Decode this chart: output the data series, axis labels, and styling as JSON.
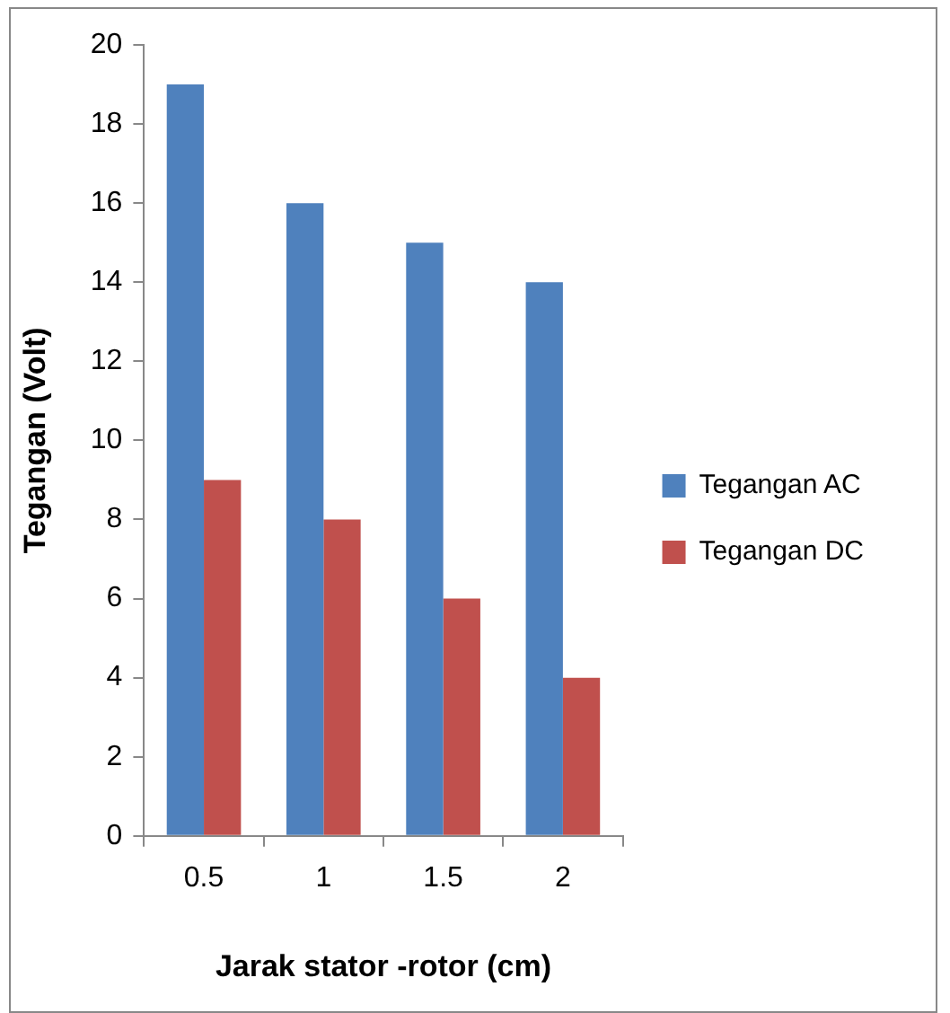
{
  "chart_data": {
    "type": "bar",
    "xlabel": "Jarak stator -rotor (cm)",
    "ylabel": "Tegangan (Volt)",
    "categories": [
      "0.5",
      "1",
      "1.5",
      "2"
    ],
    "series": [
      {
        "name": "Tegangan AC",
        "color": "#4f81bd",
        "values": [
          19,
          16,
          15,
          14
        ]
      },
      {
        "name": "Tegangan DC",
        "color": "#c0504d",
        "values": [
          9,
          8,
          6,
          4
        ]
      }
    ],
    "ylim": [
      0,
      20
    ],
    "yticks": [
      0,
      2,
      4,
      6,
      8,
      10,
      12,
      14,
      16,
      18,
      20
    ],
    "grid": false,
    "legend": "right"
  }
}
